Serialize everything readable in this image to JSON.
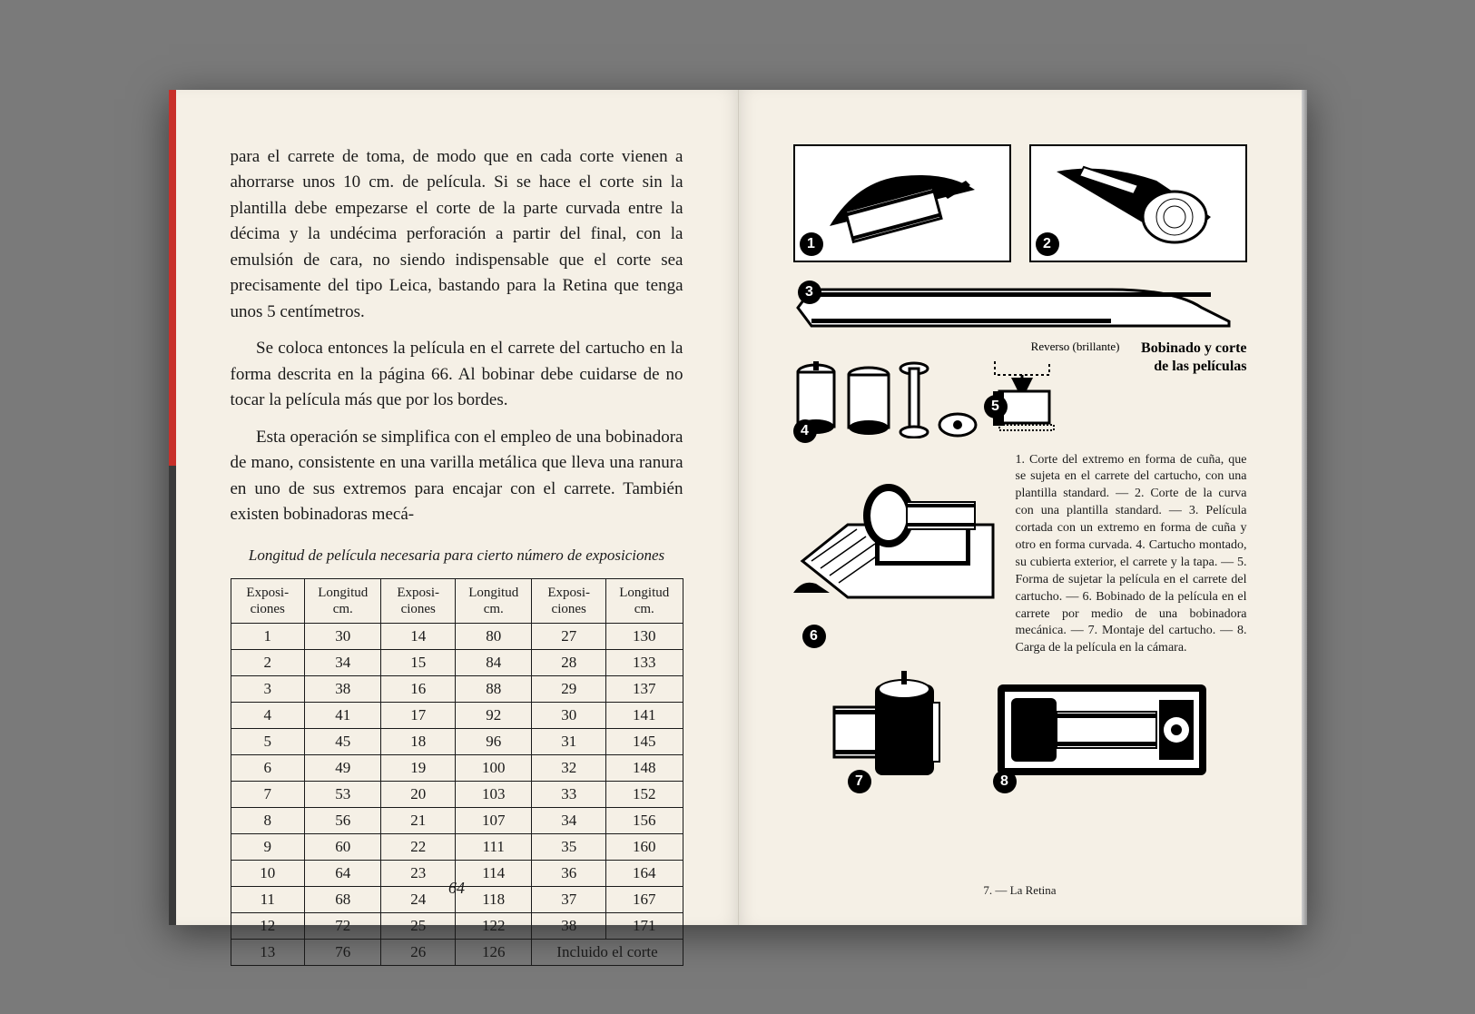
{
  "left_page": {
    "paragraphs": [
      "para el carrete de toma, de modo que en cada corte vienen a ahorrarse unos 10 cm. de película. Si se hace el corte sin la plantilla debe empezarse el corte de la parte curvada entre la décima y la undécima perforación a partir del final, con la emulsión de cara, no siendo indispensable que el corte sea precisamente del tipo Leica, bastando para la Retina que tenga unos 5 centímetros.",
      "Se coloca entonces la película en el carrete del cartucho en la forma descrita en la página 66. Al bobinar debe cuidarse de no tocar la película más que por los bordes.",
      "Esta operación se simplifica con el empleo de una bobinadora de mano, consistente en una varilla metálica que lleva una ranura en uno de sus extremos para encajar con el carrete. También existen bobinadoras mecá-"
    ],
    "table_title": "Longitud de película necesaria para cierto número de exposiciones",
    "table": {
      "headers": [
        "Exposi-\nciones",
        "Longitud\ncm.",
        "Exposi-\nciones",
        "Longitud\ncm.",
        "Exposi-\nciones",
        "Longitud\ncm."
      ],
      "rows": [
        [
          "1",
          "30",
          "14",
          "80",
          "27",
          "130"
        ],
        [
          "2",
          "34",
          "15",
          "84",
          "28",
          "133"
        ],
        [
          "3",
          "38",
          "16",
          "88",
          "29",
          "137"
        ],
        [
          "4",
          "41",
          "17",
          "92",
          "30",
          "141"
        ],
        [
          "5",
          "45",
          "18",
          "96",
          "31",
          "145"
        ],
        [
          "6",
          "49",
          "19",
          "100",
          "32",
          "148"
        ],
        [
          "7",
          "53",
          "20",
          "103",
          "33",
          "152"
        ],
        [
          "8",
          "56",
          "21",
          "107",
          "34",
          "156"
        ],
        [
          "9",
          "60",
          "22",
          "111",
          "35",
          "160"
        ],
        [
          "10",
          "64",
          "23",
          "114",
          "36",
          "164"
        ],
        [
          "11",
          "68",
          "24",
          "118",
          "37",
          "167"
        ],
        [
          "12",
          "72",
          "25",
          "122",
          "38",
          "171"
        ],
        [
          "13",
          "76",
          "26",
          "126",
          "Incluido el corte",
          ""
        ]
      ]
    },
    "page_number": "64"
  },
  "right_page": {
    "illustrations": {
      "count": 8,
      "labels": [
        "1",
        "2",
        "3",
        "4",
        "5",
        "6",
        "7",
        "8"
      ],
      "reverse_label": "Reverso (brillante)"
    },
    "title": "Bobinado y corte de las películas",
    "caption": "1. Corte del extremo en forma de cuña, que se sujeta en el carrete del cartucho, con una plantilla standard. — 2. Corte de la curva con una plantilla standard. — 3. Película cortada con un extremo en forma de cuña y otro en forma curvada. 4. Cartucho montado, su cubierta exterior, el carrete y la tapa. — 5. Forma de sujetar la película en el carrete del cartucho. — 6. Bobinado de la película en el carrete por medio de una bobinadora mecánica. — 7. Montaje del cartucho. — 8. Carga de la película en la cámara.",
    "footer": "7. — La Retina"
  },
  "colors": {
    "page_bg": "#f5f0e6",
    "text": "#1a1a1a",
    "spine_red": "#c8302a",
    "outer_bg": "#7a7a7a"
  }
}
